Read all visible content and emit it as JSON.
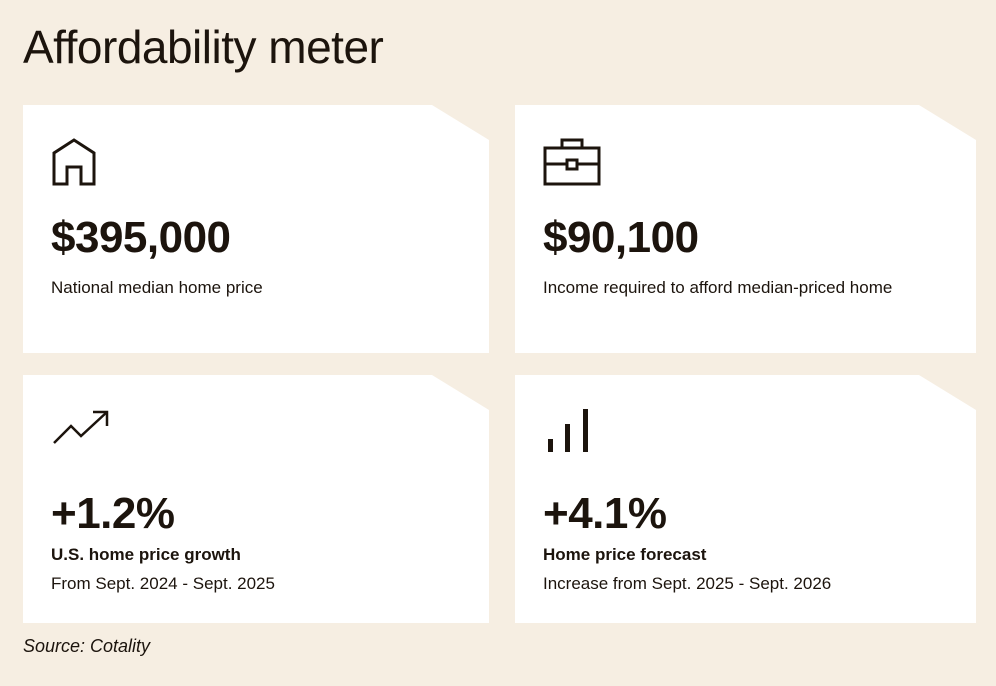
{
  "title": "Affordability meter",
  "cards": [
    {
      "icon": "house-icon",
      "value": "$395,000",
      "label": "National median home price"
    },
    {
      "icon": "briefcase-icon",
      "value": "$90,100",
      "label": "Income required to afford median-priced home"
    },
    {
      "icon": "trending-up-icon",
      "value": "+1.2%",
      "label": "U.S. home price growth",
      "sub": "From Sept. 2024 - Sept. 2025"
    },
    {
      "icon": "bar-chart-icon",
      "value": "+4.1%",
      "label": "Home price forecast",
      "sub": "Increase from Sept. 2025 - Sept. 2026"
    }
  ],
  "source": "Source: Cotality"
}
